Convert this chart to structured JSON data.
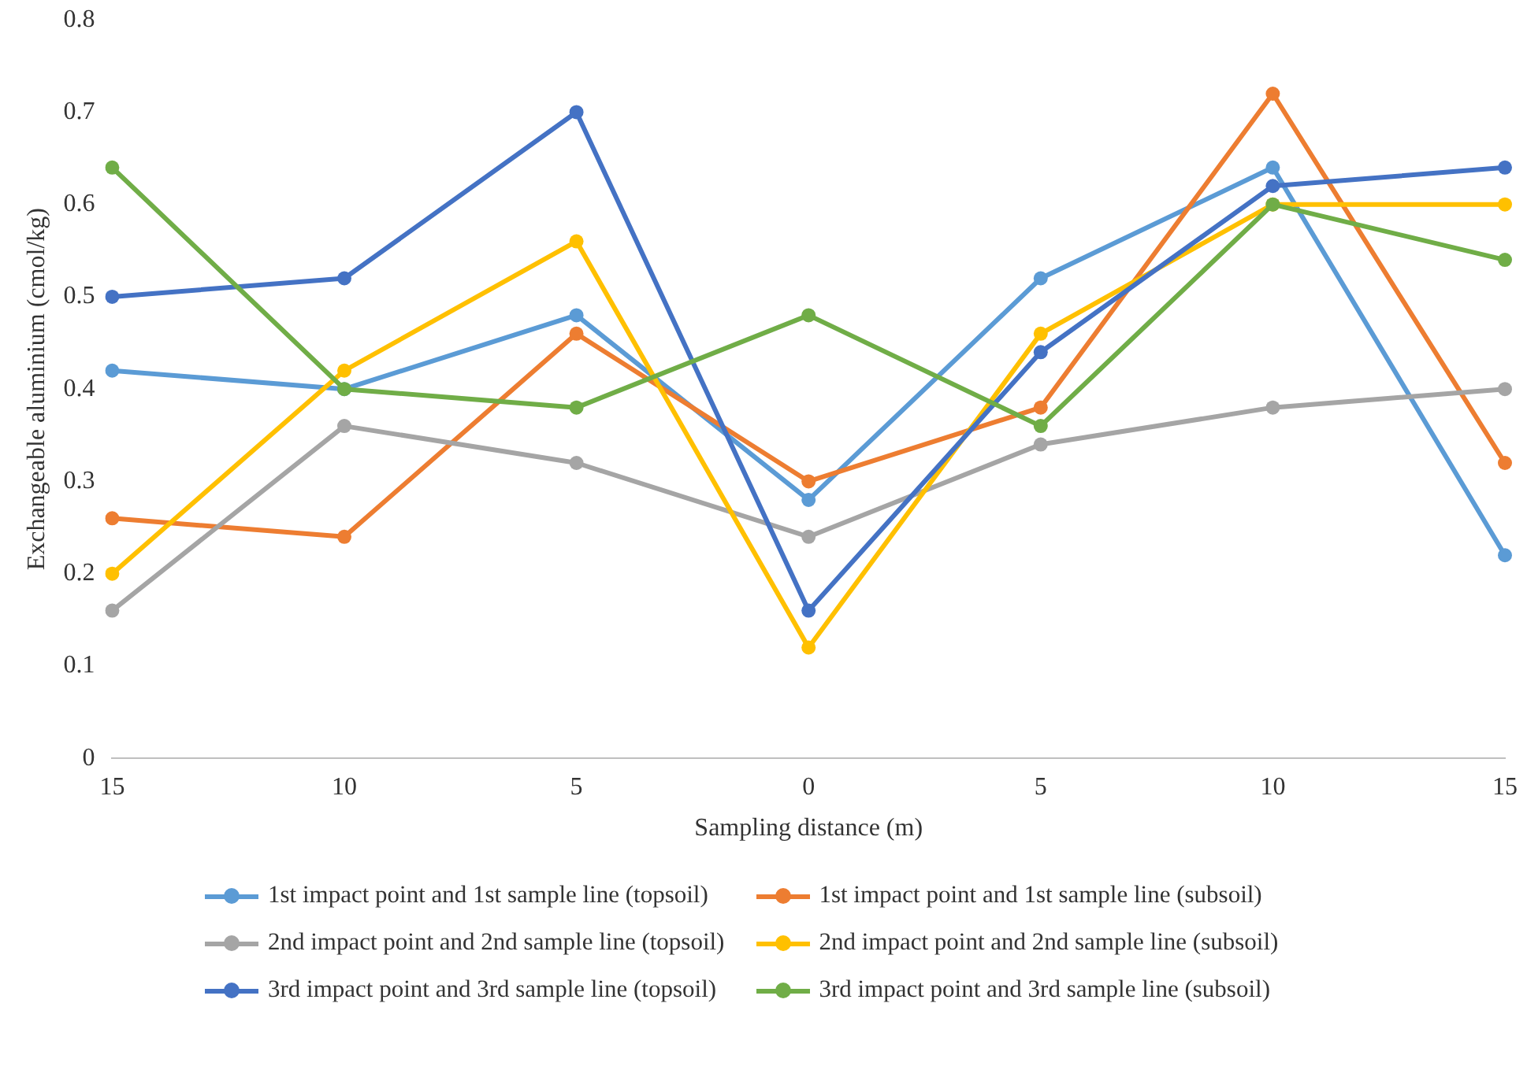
{
  "chart_data": {
    "type": "line",
    "xlabel": "Sampling distance (m)",
    "ylabel": "Exchangeable aluminium (cmol/kg)",
    "categories": [
      "15",
      "10",
      "5",
      "0",
      "5",
      "10",
      "15"
    ],
    "ylim": [
      0,
      0.8
    ],
    "yticks": [
      0,
      0.1,
      0.2,
      0.3,
      0.4,
      0.5,
      0.6,
      0.7,
      0.8
    ],
    "grid": false,
    "legend": "bottom",
    "marker": "circle",
    "line_style": "solid",
    "series": [
      {
        "name": "1st impact point and 1st sample line (topsoil)",
        "color": "#5b9bd5",
        "values": [
          0.42,
          0.4,
          0.48,
          0.28,
          0.52,
          0.64,
          0.22
        ]
      },
      {
        "name": "1st impact point and 1st sample line (subsoil)",
        "color": "#ed7d31",
        "values": [
          0.26,
          0.24,
          0.46,
          0.3,
          0.38,
          0.72,
          0.32
        ]
      },
      {
        "name": "2nd impact point and 2nd sample line (topsoil)",
        "color": "#a5a5a5",
        "values": [
          0.16,
          0.36,
          0.32,
          0.24,
          0.34,
          0.38,
          0.4
        ]
      },
      {
        "name": "2nd impact point and 2nd sample line (subsoil)",
        "color": "#ffc000",
        "values": [
          0.2,
          0.42,
          0.56,
          0.12,
          0.46,
          0.6,
          0.6
        ]
      },
      {
        "name": "3rd impact point and 3rd sample line (topsoil)",
        "color": "#4472c4",
        "values": [
          0.5,
          0.52,
          0.7,
          0.16,
          0.44,
          0.62,
          0.64
        ]
      },
      {
        "name": "3rd impact point and 3rd sample line (subsoil)",
        "color": "#70ad47",
        "values": [
          0.64,
          0.4,
          0.38,
          0.48,
          0.36,
          0.6,
          0.54
        ]
      }
    ]
  }
}
